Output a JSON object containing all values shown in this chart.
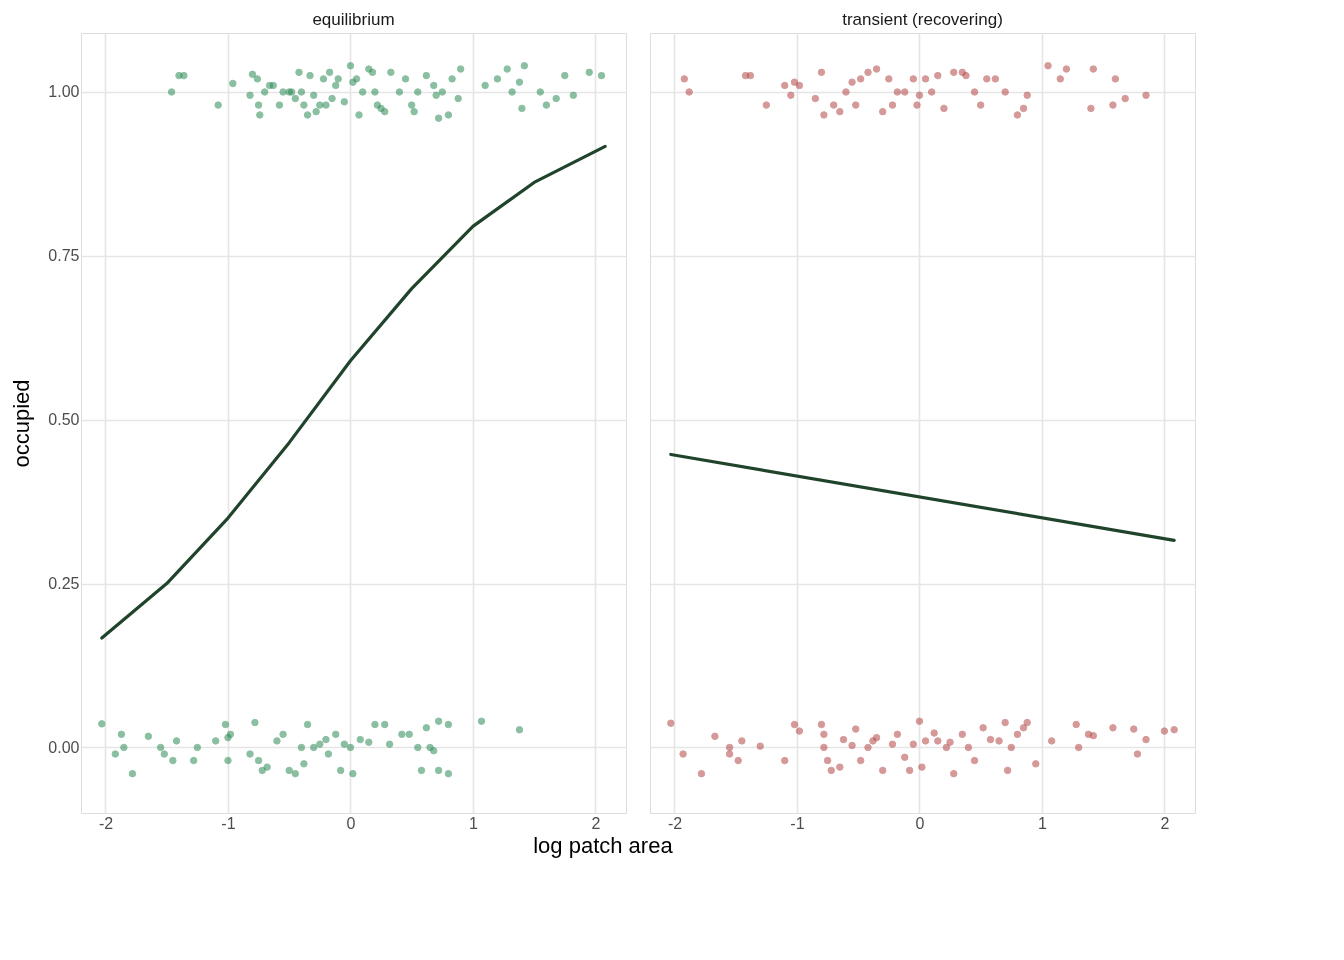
{
  "chart_data": [
    {
      "type": "scatter",
      "title": "equilibrium",
      "ylabel": "occupied",
      "xlabel": "log patch area",
      "xlim": [
        -2.2,
        2.25
      ],
      "ylim": [
        -0.1,
        1.09
      ],
      "xticks": [
        -2,
        -1,
        0,
        1,
        2
      ],
      "yticks": [
        {
          "value": 0,
          "label": "0.00"
        },
        {
          "value": 0.25,
          "label": "0.25"
        },
        {
          "value": 0.5,
          "label": "0.50"
        },
        {
          "value": 0.75,
          "label": "0.75"
        },
        {
          "value": 1,
          "label": "1.00"
        }
      ],
      "grid": true,
      "series": [
        {
          "marker": "circle",
          "color": "#2e8b57",
          "x": [
            -1.46,
            -1.4,
            -1.36,
            -1.08,
            -0.96,
            -0.82,
            -0.8,
            -0.76,
            -0.75,
            -0.74,
            -0.7,
            -0.66,
            -0.63,
            -0.58,
            -0.55,
            -0.5,
            -0.48,
            -0.45,
            -0.42,
            -0.4,
            -0.38,
            -0.35,
            -0.33,
            -0.3,
            -0.28,
            -0.25,
            -0.22,
            -0.2,
            -0.17,
            -0.15,
            -0.12,
            -0.1,
            -0.05,
            0.0,
            0.02,
            0.05,
            0.07,
            0.1,
            0.15,
            0.18,
            0.2,
            0.22,
            0.25,
            0.28,
            0.33,
            0.4,
            0.45,
            0.5,
            0.52,
            0.55,
            0.62,
            0.68,
            0.7,
            0.72,
            0.75,
            0.8,
            0.83,
            0.88,
            0.9,
            1.1,
            1.2,
            1.28,
            1.32,
            1.38,
            1.4,
            1.42,
            1.55,
            1.6,
            1.68,
            1.75,
            1.82,
            1.95,
            2.05
          ],
          "values": [
            1.0,
            1.025,
            1.025,
            0.98,
            1.013,
            0.995,
            1.027,
            1.02,
            0.98,
            0.965,
            1.0,
            1.01,
            1.01,
            0.98,
            1.0,
            1.0,
            1.0,
            0.99,
            1.03,
            1.0,
            0.98,
            0.965,
            1.025,
            0.995,
            0.97,
            0.98,
            1.02,
            0.98,
            1.03,
            0.99,
            1.01,
            1.02,
            0.985,
            1.04,
            1.015,
            1.02,
            0.965,
            1.0,
            1.035,
            1.03,
            1.0,
            0.98,
            0.975,
            0.97,
            1.03,
            1.0,
            1.02,
            0.98,
            0.97,
            1.0,
            1.025,
            1.01,
            0.995,
            0.96,
            1.0,
            0.965,
            1.02,
            0.99,
            1.035,
            1.01,
            1.02,
            1.035,
            1.0,
            1.015,
            0.975,
            1.04,
            1.0,
            0.98,
            0.99,
            1.025,
            0.995,
            1.03,
            1.025
          ]
        },
        {
          "marker": "circle",
          "color": "#2e8b57",
          "x": [
            -2.03,
            -1.87,
            -1.92,
            -1.85,
            -1.78,
            -1.65,
            -1.55,
            -1.52,
            -1.45,
            -1.42,
            -1.25,
            -1.28,
            -1.1,
            -1.02,
            -1.0,
            -0.98,
            -1.0,
            -0.82,
            -0.78,
            -0.75,
            -0.72,
            -0.68,
            -0.6,
            -0.55,
            -0.5,
            -0.45,
            -0.4,
            -0.35,
            -0.38,
            -0.3,
            -0.25,
            -0.2,
            -0.18,
            -0.12,
            -0.08,
            -0.05,
            0.0,
            0.02,
            0.08,
            0.15,
            0.2,
            0.28,
            0.32,
            0.42,
            0.48,
            0.55,
            0.58,
            0.62,
            0.65,
            0.68,
            0.72,
            0.72,
            0.8,
            0.8,
            1.07,
            1.38
          ],
          "values": [
            0.036,
            0.02,
            -0.01,
            0.0,
            -0.04,
            0.017,
            0.0,
            -0.01,
            -0.02,
            0.01,
            0.0,
            -0.02,
            0.01,
            0.035,
            0.015,
            0.02,
            -0.02,
            -0.01,
            0.038,
            -0.02,
            -0.035,
            -0.03,
            0.01,
            0.02,
            -0.035,
            -0.04,
            0.0,
            0.035,
            -0.025,
            0.0,
            0.005,
            0.012,
            -0.01,
            0.02,
            -0.035,
            0.005,
            0.0,
            -0.04,
            0.012,
            0.008,
            0.035,
            0.035,
            0.005,
            0.02,
            0.02,
            0.0,
            -0.035,
            0.03,
            0.0,
            -0.005,
            0.04,
            -0.035,
            0.035,
            -0.04,
            0.04,
            0.027
          ]
        },
        {
          "type": "line",
          "color": "#20432b",
          "x": [
            -2.03,
            -1.5,
            -1.0,
            -0.5,
            0.0,
            0.5,
            1.0,
            1.5,
            2.08
          ],
          "values": [
            0.167,
            0.25,
            0.35,
            0.465,
            0.59,
            0.7,
            0.795,
            0.862,
            0.917
          ]
        }
      ]
    },
    {
      "type": "scatter",
      "title": "transient (recovering)",
      "xlim": [
        -2.2,
        2.25
      ],
      "ylim": [
        -0.1,
        1.09
      ],
      "xticks": [
        -2,
        -1,
        0,
        1,
        2
      ],
      "yticks": [
        0,
        0.25,
        0.5,
        0.75,
        1
      ],
      "tick_labels": "x",
      "grid": true,
      "series": [
        {
          "marker": "circle",
          "color": "#b24745",
          "x": [
            -1.92,
            -1.88,
            -1.42,
            -1.38,
            -1.25,
            -1.1,
            -1.02,
            -1.05,
            -0.98,
            -0.85,
            -0.8,
            -0.78,
            -0.7,
            -0.65,
            -0.6,
            -0.55,
            -0.52,
            -0.48,
            -0.42,
            -0.35,
            -0.3,
            -0.25,
            -0.22,
            -0.18,
            -0.12,
            -0.05,
            -0.02,
            0.0,
            0.05,
            0.1,
            0.15,
            0.2,
            0.28,
            0.35,
            0.38,
            0.45,
            0.5,
            0.55,
            0.62,
            0.7,
            0.8,
            0.85,
            0.88,
            1.05,
            1.15,
            1.2,
            1.42,
            1.4,
            1.6,
            1.58,
            1.68,
            1.85
          ],
          "values": [
            1.02,
            1.0,
            1.025,
            1.025,
            0.98,
            1.01,
            1.015,
            0.995,
            1.01,
            0.99,
            1.03,
            0.965,
            0.98,
            0.97,
            1.0,
            1.015,
            0.98,
            1.02,
            1.03,
            1.035,
            0.97,
            1.02,
            0.98,
            1.0,
            1.0,
            1.02,
            0.98,
            0.995,
            1.02,
            1.0,
            1.025,
            0.975,
            1.03,
            1.03,
            1.025,
            1.0,
            0.98,
            1.02,
            1.02,
            1.0,
            0.965,
            0.975,
            0.995,
            1.04,
            1.02,
            1.035,
            1.035,
            0.975,
            1.02,
            0.98,
            0.99,
            0.995
          ]
        },
        {
          "marker": "circle",
          "color": "#b24745",
          "x": [
            -2.03,
            -1.93,
            -1.78,
            -1.67,
            -1.55,
            -1.55,
            -1.48,
            -1.45,
            -1.3,
            -1.1,
            -1.02,
            -0.98,
            -0.8,
            -0.78,
            -0.75,
            -0.78,
            -0.72,
            -0.65,
            -0.62,
            -0.55,
            -0.52,
            -0.48,
            -0.42,
            -0.38,
            -0.35,
            -0.3,
            -0.22,
            -0.18,
            -0.12,
            -0.08,
            -0.05,
            0.0,
            0.02,
            0.05,
            0.12,
            0.15,
            0.22,
            0.25,
            0.28,
            0.35,
            0.4,
            0.45,
            0.52,
            0.58,
            0.65,
            0.7,
            0.72,
            0.75,
            0.8,
            0.85,
            0.88,
            0.95,
            1.08,
            1.28,
            1.3,
            1.38,
            1.42,
            1.58,
            1.75,
            1.78,
            1.85,
            2.0,
            2.08
          ],
          "values": [
            0.037,
            -0.01,
            -0.04,
            0.017,
            0.0,
            -0.01,
            -0.02,
            0.01,
            0.002,
            -0.02,
            0.035,
            0.025,
            0.035,
            0.02,
            -0.02,
            0.0,
            -0.035,
            -0.03,
            0.012,
            0.003,
            0.028,
            -0.02,
            0.0,
            0.01,
            0.015,
            -0.035,
            0.005,
            0.02,
            -0.015,
            -0.035,
            0.005,
            0.04,
            -0.03,
            0.01,
            0.022,
            0.01,
            0.0,
            0.008,
            -0.04,
            0.02,
            0.0,
            -0.02,
            0.03,
            0.012,
            0.01,
            0.038,
            -0.035,
            0.0,
            0.02,
            0.03,
            0.038,
            -0.025,
            0.01,
            0.035,
            0.0,
            0.02,
            0.018,
            0.03,
            0.028,
            -0.01,
            0.012,
            0.025,
            0.027
          ]
        },
        {
          "type": "line",
          "color": "#20432b",
          "x": [
            -2.03,
            2.08
          ],
          "values": [
            0.447,
            0.316
          ]
        }
      ]
    }
  ]
}
